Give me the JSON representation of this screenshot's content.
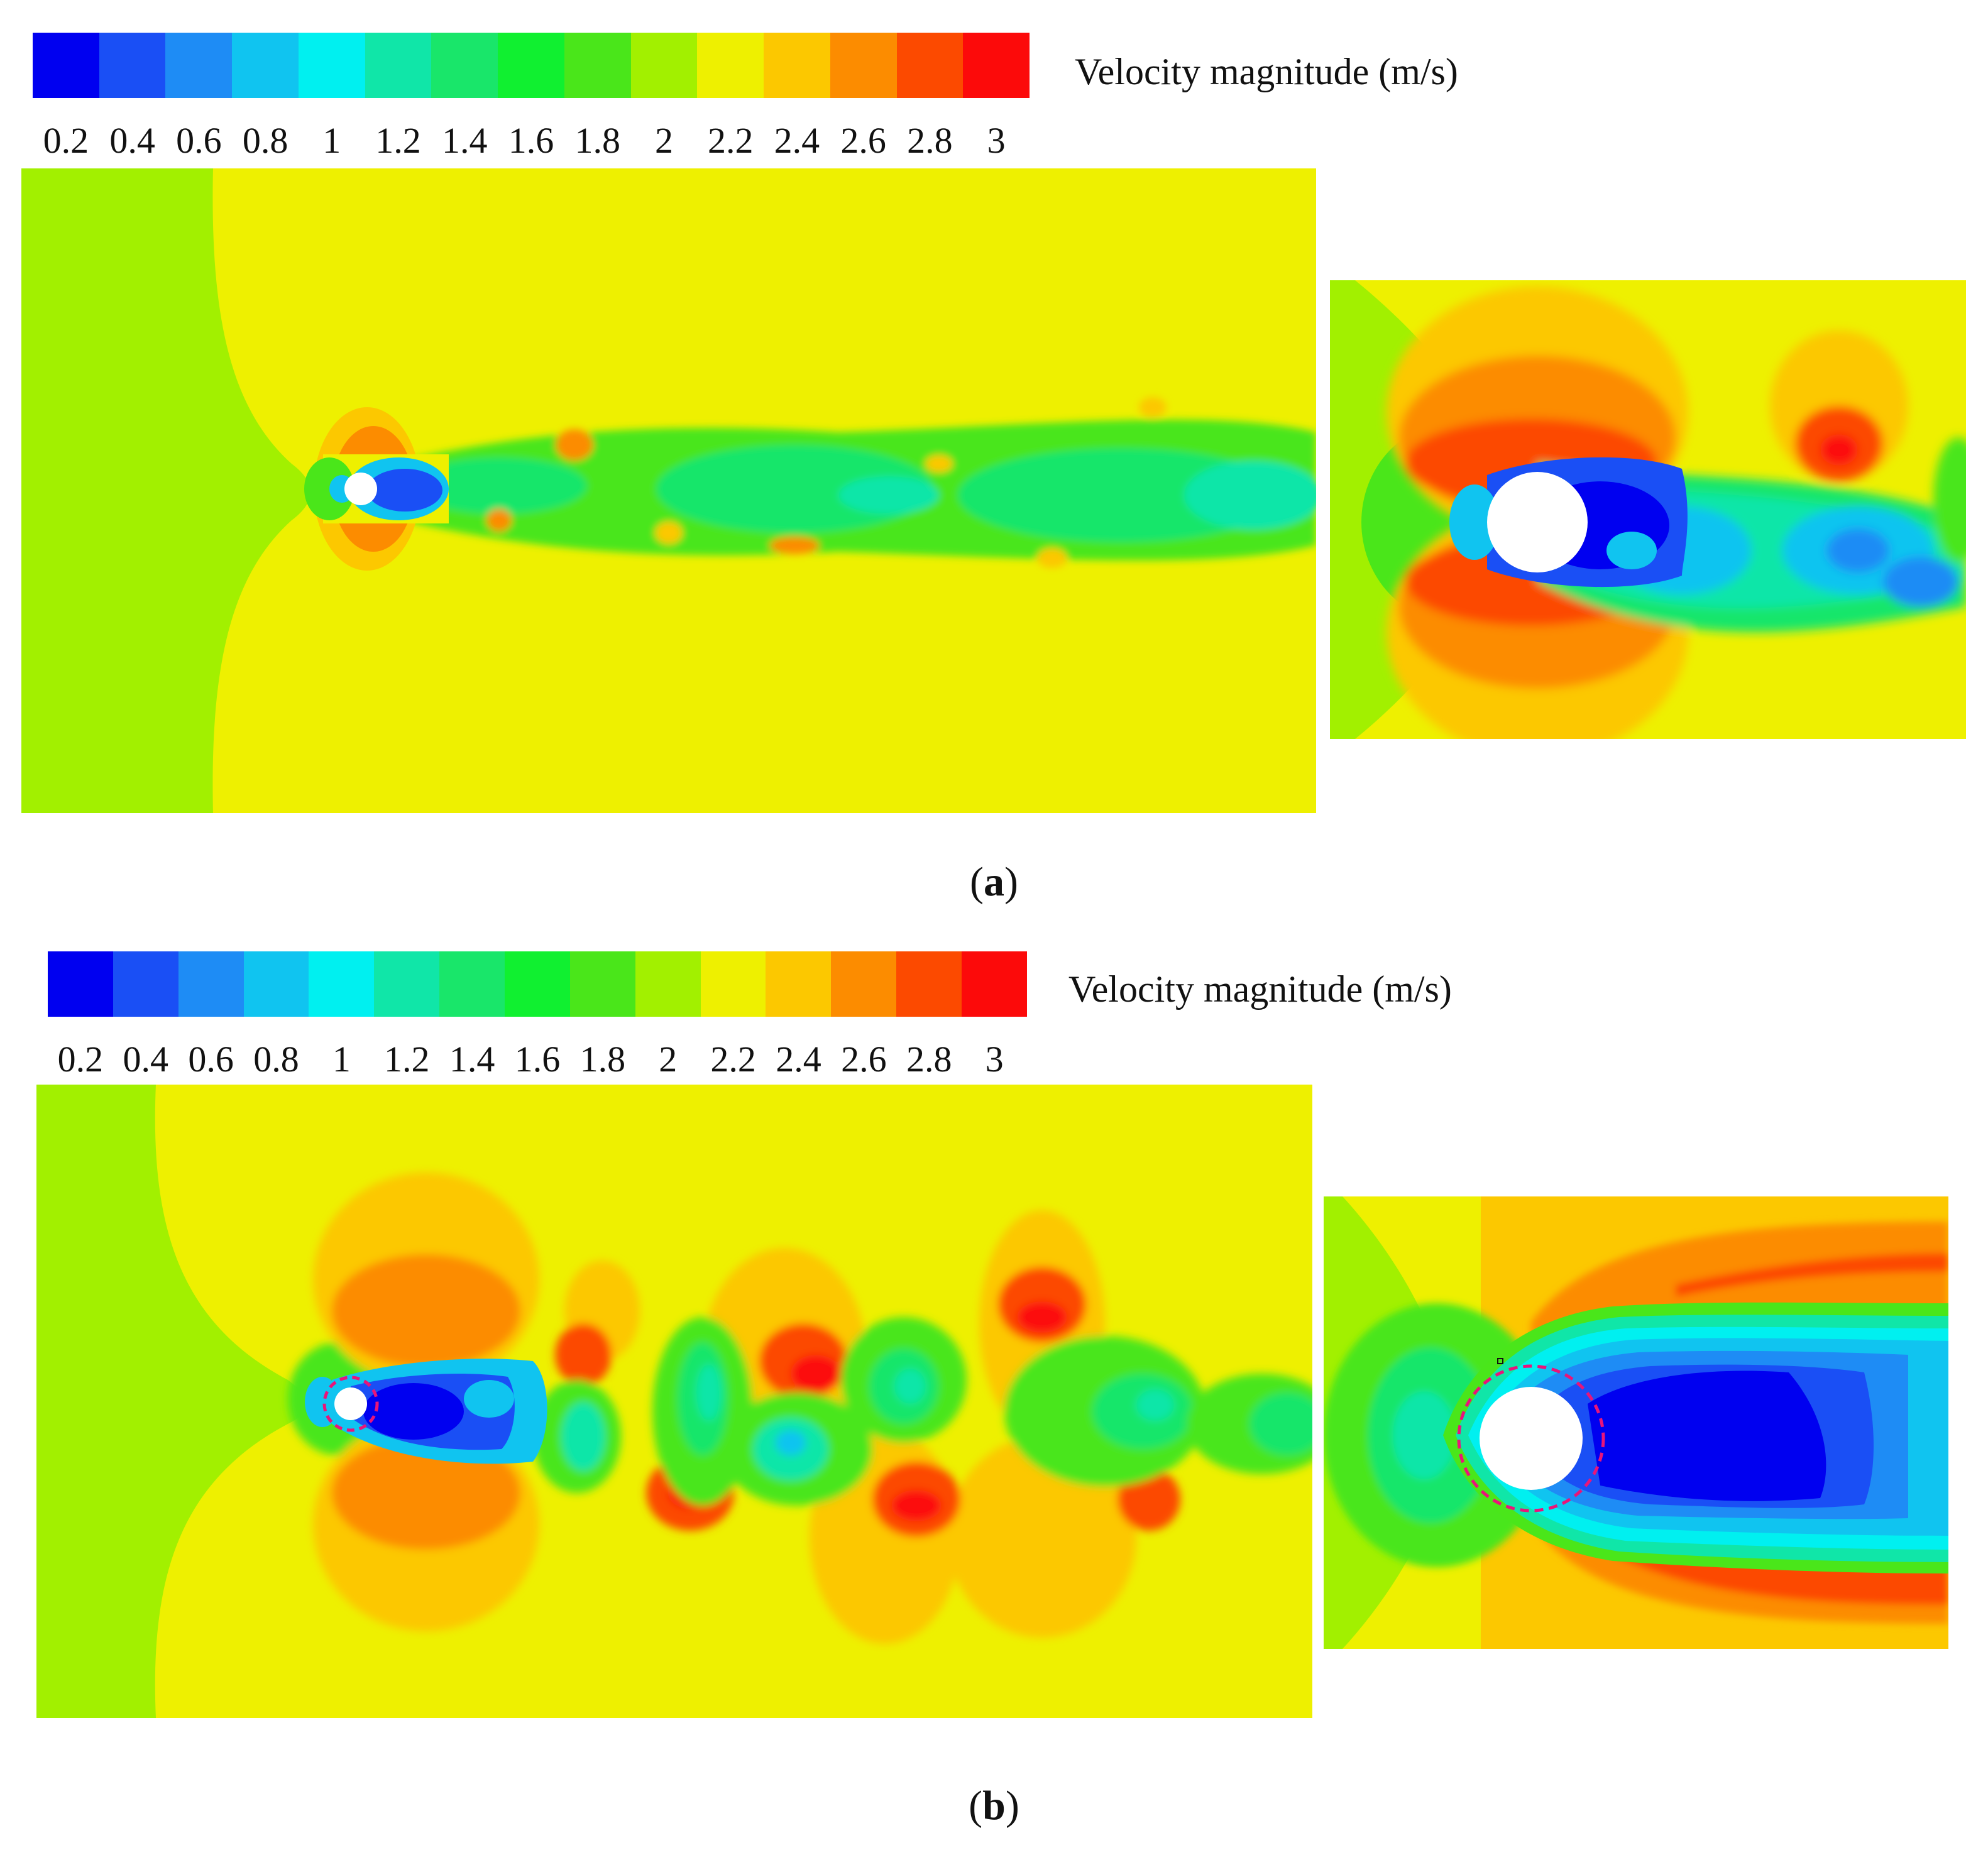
{
  "colorbar": {
    "title": "Velocity magnitude (m/s)",
    "ticks": [
      "0.2",
      "0.4",
      "0.6",
      "0.8",
      "1",
      "1.2",
      "1.4",
      "1.6",
      "1.8",
      "2",
      "2.2",
      "2.4",
      "2.6",
      "2.8",
      "3"
    ],
    "colors": [
      "#0000f0",
      "#1a4ff5",
      "#1e8cf5",
      "#10c4f0",
      "#00f0f0",
      "#10e6a8",
      "#19e66a",
      "#10f030",
      "#4ae61a",
      "#a2f000",
      "#eef000",
      "#fcc800",
      "#fc8c00",
      "#fc4a00",
      "#fc0a0a"
    ]
  },
  "panels": [
    {
      "label": "a"
    },
    {
      "label": "b"
    }
  ]
}
